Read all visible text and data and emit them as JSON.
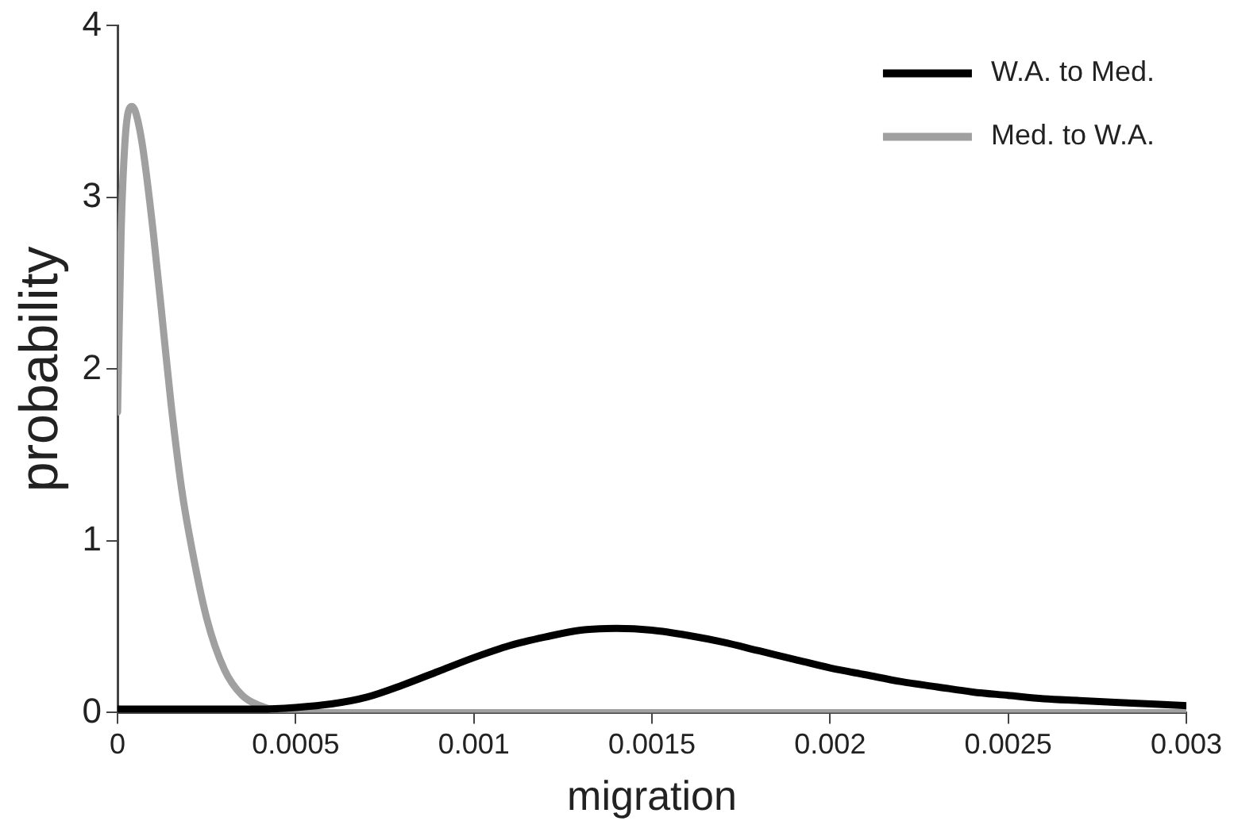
{
  "chart_data": {
    "type": "line",
    "xlabel": "migration",
    "ylabel": "probability",
    "xlim": [
      0,
      0.003
    ],
    "xticks": [
      0,
      0.0005,
      0.001,
      0.0015,
      0.002,
      0.0025,
      0.003
    ],
    "ylim": [
      0,
      4
    ],
    "yticks": [
      0,
      1,
      2,
      3,
      4
    ],
    "grid": false,
    "legend": "top right",
    "marker": "none",
    "line_style": "solid",
    "series": [
      {
        "name": "W.A. to Med.",
        "color": "#000000",
        "x": [
          0,
          0.0002,
          0.0004,
          0.0005,
          0.0006,
          0.0007,
          0.0008,
          0.0009,
          0.001,
          0.0011,
          0.0012,
          0.0013,
          0.0014,
          0.0015,
          0.0016,
          0.0017,
          0.0018,
          0.0019,
          0.002,
          0.0021,
          0.0022,
          0.0023,
          0.0024,
          0.0025,
          0.0026,
          0.0027,
          0.0028,
          0.0029,
          0.003
        ],
        "values": [
          0.02,
          0.02,
          0.02,
          0.03,
          0.05,
          0.09,
          0.16,
          0.24,
          0.32,
          0.39,
          0.44,
          0.48,
          0.49,
          0.48,
          0.45,
          0.41,
          0.36,
          0.31,
          0.26,
          0.22,
          0.18,
          0.15,
          0.12,
          0.1,
          0.08,
          0.07,
          0.06,
          0.05,
          0.04
        ]
      },
      {
        "name": "Med. to W.A.",
        "color": "#a0a0a0",
        "x": [
          0,
          1e-05,
          2e-05,
          3e-05,
          4e-05,
          5e-05,
          7e-05,
          0.0001,
          0.00013,
          0.00015,
          0.00018,
          0.0002,
          0.00025,
          0.0003,
          0.00035,
          0.0004,
          0.00045,
          0.0005,
          0.001,
          0.0015,
          0.002,
          0.0025,
          0.003
        ],
        "values": [
          1.75,
          2.8,
          3.3,
          3.5,
          3.53,
          3.5,
          3.3,
          2.8,
          2.2,
          1.8,
          1.3,
          1.05,
          0.55,
          0.25,
          0.1,
          0.04,
          0.01,
          0,
          0,
          0,
          0,
          0,
          0
        ]
      }
    ]
  }
}
